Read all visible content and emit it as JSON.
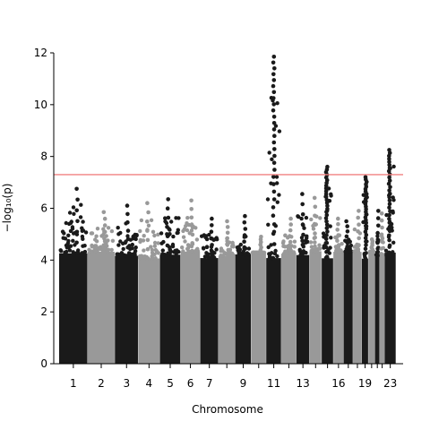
{
  "chart_data": {
    "type": "scatter",
    "title": "",
    "xlabel": "Chromosome",
    "ylabel": "−log₁₀(p)",
    "ylim": [
      0,
      12
    ],
    "yticks": [
      0,
      2,
      4,
      6,
      8,
      10,
      12
    ],
    "xtick_labels": [
      "1",
      "2",
      "3",
      "4",
      "5",
      "6",
      "7",
      "9",
      "11",
      "13",
      "16",
      "19",
      "23"
    ],
    "significance_threshold": 7.3,
    "threshold_color": "#f08080",
    "colors": {
      "odd": "#1a1a1a",
      "even": "#999999"
    },
    "chromosomes": [
      {
        "name": "1",
        "peak": 6.75,
        "labeled": true
      },
      {
        "name": "2",
        "peak": 5.85,
        "labeled": true
      },
      {
        "name": "3",
        "peak": 6.1,
        "labeled": true
      },
      {
        "name": "4",
        "peak": 6.2,
        "labeled": true
      },
      {
        "name": "5",
        "peak": 6.35,
        "labeled": true
      },
      {
        "name": "6",
        "peak": 6.3,
        "labeled": true
      },
      {
        "name": "7",
        "peak": 5.6,
        "labeled": true
      },
      {
        "name": "8",
        "peak": 5.5,
        "labeled": false
      },
      {
        "name": "9",
        "peak": 5.7,
        "labeled": true
      },
      {
        "name": "10",
        "peak": 4.9,
        "labeled": false
      },
      {
        "name": "11",
        "peak": 11.85,
        "labeled": true
      },
      {
        "name": "12",
        "peak": 5.6,
        "labeled": false
      },
      {
        "name": "13",
        "peak": 6.55,
        "labeled": true
      },
      {
        "name": "14",
        "peak": 6.4,
        "labeled": false
      },
      {
        "name": "15",
        "peak": 7.6,
        "labeled": false
      },
      {
        "name": "16",
        "peak": 5.6,
        "labeled": true
      },
      {
        "name": "17",
        "peak": 5.5,
        "labeled": false
      },
      {
        "name": "18",
        "peak": 5.9,
        "labeled": false
      },
      {
        "name": "19",
        "peak": 7.2,
        "labeled": true
      },
      {
        "name": "20",
        "peak": 4.8,
        "labeled": false
      },
      {
        "name": "21",
        "peak": 5.9,
        "labeled": false
      },
      {
        "name": "22",
        "peak": 5.8,
        "labeled": false
      },
      {
        "name": "23",
        "peak": 8.25,
        "labeled": true
      }
    ]
  }
}
